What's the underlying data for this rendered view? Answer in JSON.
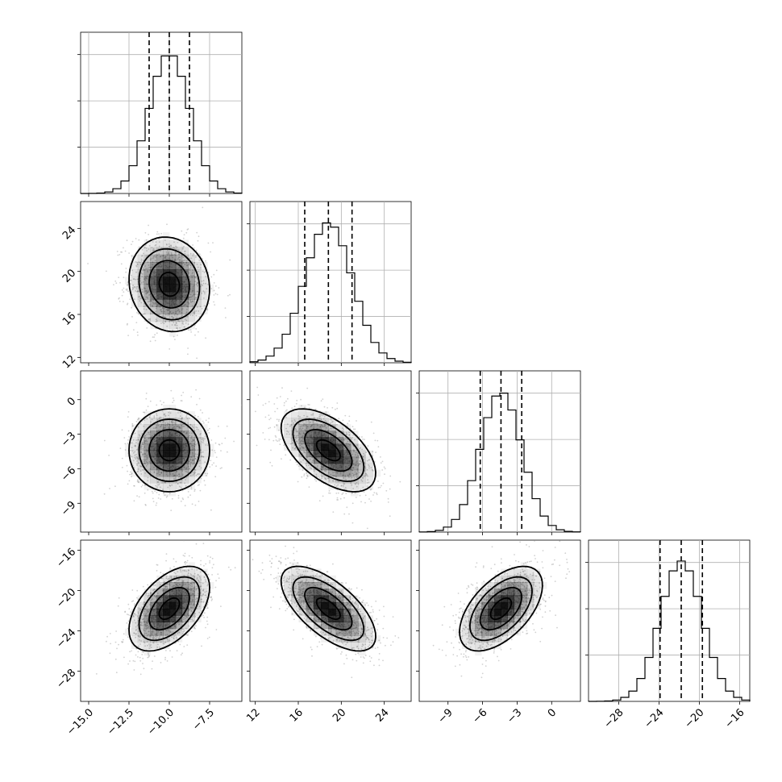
{
  "chart_data": {
    "type": "corner",
    "grid": true,
    "colors": {
      "line": "#000000",
      "grid": "#b0b0b0",
      "scatter": "#9a9a9a",
      "density_dark": "#000000"
    },
    "parameters": [
      {
        "range": [
          -15.5,
          -5.5
        ],
        "ticks": [
          -15.0,
          -12.5,
          -10.0,
          -7.5
        ],
        "tick_labels": [
          "−15.0",
          "−12.5",
          "−10.0",
          "−7.5"
        ],
        "mean": -10.0,
        "sd": 1.25,
        "quantiles": [
          -11.25,
          -10.0,
          -8.75
        ]
      },
      {
        "range": [
          11.5,
          26.5
        ],
        "ticks": [
          12,
          16,
          20,
          24
        ],
        "tick_labels": [
          "12",
          "16",
          "20",
          "24"
        ],
        "mean": 18.8,
        "sd": 2.2,
        "quantiles": [
          16.6,
          18.8,
          21.0
        ]
      },
      {
        "range": [
          -11.5,
          2.5
        ],
        "ticks": [
          -9,
          -6,
          -3,
          0
        ],
        "tick_labels": [
          "−9",
          "−6",
          "−3",
          "0"
        ],
        "mean": -4.4,
        "sd": 1.8,
        "quantiles": [
          -6.2,
          -4.4,
          -2.6
        ]
      },
      {
        "range": [
          -31,
          -15
        ],
        "ticks": [
          -28,
          -24,
          -20,
          -16
        ],
        "tick_labels": [
          "−28",
          "−24",
          "−20",
          "−16"
        ],
        "mean": -21.8,
        "sd": 2.1,
        "quantiles": [
          -23.9,
          -21.8,
          -19.7
        ]
      }
    ],
    "correlations": {
      "1_0": -0.1,
      "2_0": 0.0,
      "2_1": -0.55,
      "3_0": 0.5,
      "3_1": -0.65,
      "3_2": 0.55
    },
    "contour_levels_sigma": [
      0.5,
      1.0,
      1.5,
      2.0
    ],
    "scatter_points_per_panel": 1200
  }
}
